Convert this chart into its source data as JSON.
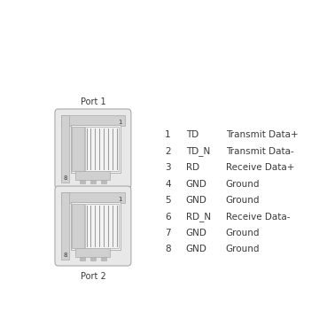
{
  "background_color": "#ffffff",
  "port1_label": "Port 1",
  "port2_label": "Port 2",
  "pin_table": [
    [
      "1",
      "TD",
      "Transmit Data+"
    ],
    [
      "2",
      "TD_N",
      "Transmit Data-"
    ],
    [
      "3",
      "RD",
      "Receive Data+"
    ],
    [
      "4",
      "GND",
      "Ground"
    ],
    [
      "5",
      "GND",
      "Ground"
    ],
    [
      "6",
      "RD_N",
      "Receive Data-"
    ],
    [
      "7",
      "GND",
      "Ground"
    ],
    [
      "8",
      "GND",
      "Ground"
    ]
  ],
  "text_color": "#3a3a3a",
  "outline_color": "#aaaaaa",
  "fill_light": "#e8e8e8",
  "fill_mid": "#d0d0d0",
  "fill_dark": "#bbbbbb",
  "fill_white": "#f2f2f2",
  "port_label_fontsize": 7.0,
  "table_fontsize": 7.5
}
